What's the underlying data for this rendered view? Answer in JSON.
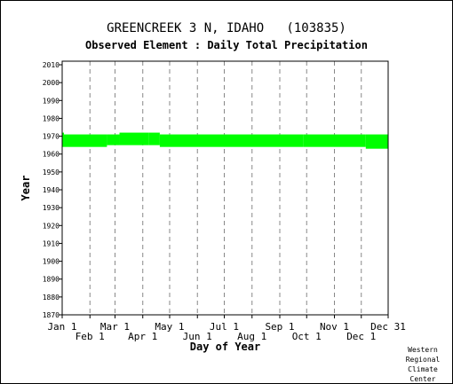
{
  "title": "GREENCREEK 3 N, IDAHO   (103835)",
  "subtitle": "Observed Element : Daily Total Precipitation",
  "credit": [
    "Western",
    "Regional",
    "Climate",
    "Center"
  ],
  "colors": {
    "data": "#00ff00",
    "grid": "#888888",
    "axis": "#000000",
    "text": "#000000",
    "background": "#ffffff"
  },
  "chart_data": {
    "type": "range-bar",
    "xlabel": "Day of Year",
    "ylabel": "Year",
    "xlim": [
      1,
      365
    ],
    "ylim": [
      1870,
      2012
    ],
    "grid": "vertical dashed at month starts",
    "x_ticks_top_row": [
      {
        "label": "Jan 1",
        "day": 1
      },
      {
        "label": "Mar 1",
        "day": 60
      },
      {
        "label": "May 1",
        "day": 121
      },
      {
        "label": "Jul 1",
        "day": 182
      },
      {
        "label": "Sep 1",
        "day": 244
      },
      {
        "label": "Nov 1",
        "day": 305
      },
      {
        "label": "Dec 31",
        "day": 365
      }
    ],
    "x_ticks_bottom_row": [
      {
        "label": "Feb 1",
        "day": 32
      },
      {
        "label": "Apr 1",
        "day": 91
      },
      {
        "label": "Jun 1",
        "day": 152
      },
      {
        "label": "Aug 1",
        "day": 213
      },
      {
        "label": "Oct 1",
        "day": 274
      },
      {
        "label": "Dec 1",
        "day": 335
      }
    ],
    "grid_days": [
      32,
      60,
      91,
      121,
      152,
      182,
      213,
      244,
      274,
      305,
      335
    ],
    "y_ticks": [
      1870,
      1880,
      1890,
      1900,
      1910,
      1920,
      1930,
      1940,
      1950,
      1960,
      1970,
      1980,
      1990,
      2000,
      2010
    ],
    "series": [
      {
        "color": "#00ff00",
        "segments": [
          {
            "day_start": 1,
            "day_end": 3,
            "year_start": 1964,
            "year_end": 1972
          },
          {
            "day_start": 3,
            "day_end": 51,
            "year_start": 1964,
            "year_end": 1971
          },
          {
            "day_start": 51,
            "day_end": 65,
            "year_start": 1965,
            "year_end": 1971
          },
          {
            "day_start": 65,
            "day_end": 98,
            "year_start": 1965,
            "year_end": 1972
          },
          {
            "day_start": 98,
            "day_end": 110,
            "year_start": 1965,
            "year_end": 1972
          },
          {
            "day_start": 110,
            "day_end": 270,
            "year_start": 1964,
            "year_end": 1971
          },
          {
            "day_start": 270,
            "day_end": 340,
            "year_start": 1964,
            "year_end": 1971
          },
          {
            "day_start": 340,
            "day_end": 365,
            "year_start": 1963,
            "year_end": 1971
          }
        ]
      }
    ]
  }
}
